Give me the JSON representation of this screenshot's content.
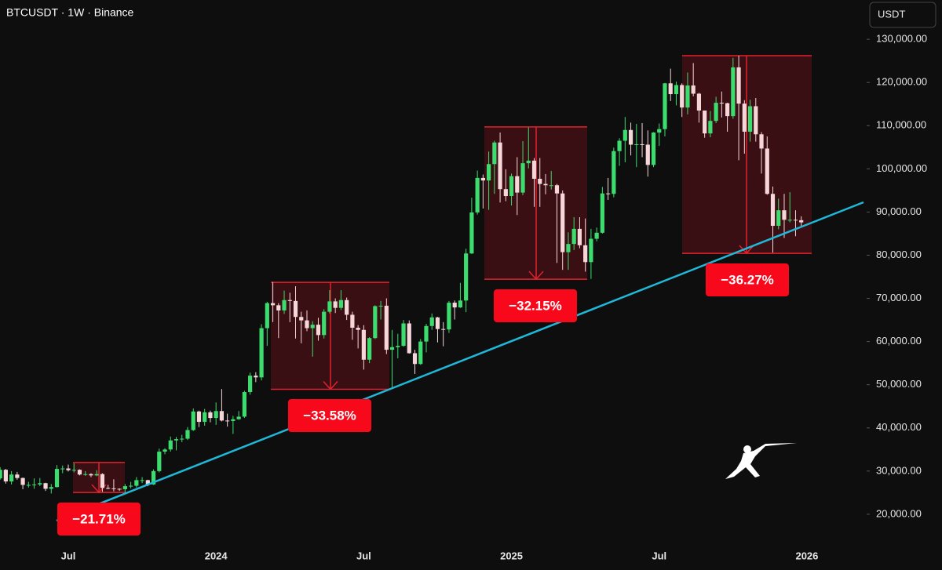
{
  "header": {
    "symbol": "BTCUSDT · 1W · Binance",
    "currency": "USDT"
  },
  "chart_data": {
    "type": "candlestick",
    "up_color": "#3ddc6f",
    "down_color": "#f6d6d8",
    "grid": false,
    "categories": [
      null,
      null,
      null,
      null,
      null,
      null,
      null,
      null,
      null,
      null,
      null,
      null,
      null,
      "Jul",
      null,
      null,
      null,
      null,
      null,
      null,
      null,
      null,
      null,
      null,
      null,
      null,
      null,
      null,
      null,
      null,
      null,
      null,
      null,
      null,
      null,
      null,
      null,
      null,
      null,
      "2024",
      null,
      null,
      null,
      null,
      null,
      null,
      null,
      null,
      null,
      null,
      null,
      null,
      null,
      null,
      null,
      null,
      null,
      null,
      null,
      null,
      null,
      null,
      null,
      null,
      null,
      "Jul",
      null,
      null,
      null,
      null,
      null,
      null,
      null,
      null,
      null,
      null,
      null,
      null,
      null,
      null,
      null,
      null,
      null,
      null,
      null,
      null,
      null,
      null,
      null,
      null,
      null,
      "2025",
      null,
      null,
      null,
      null,
      null,
      null,
      null,
      null,
      null,
      null,
      null,
      null,
      null,
      null,
      null,
      null,
      null,
      null,
      null,
      null,
      null,
      null,
      null,
      null,
      null,
      "Jul",
      null,
      null,
      null,
      null,
      null,
      null,
      null,
      null,
      null,
      null,
      null,
      null,
      null,
      null,
      null,
      null,
      null,
      null,
      null,
      null,
      null,
      null,
      null,
      null,
      null,
      "2026"
    ],
    "open": [
      28000,
      28300,
      30300,
      27600,
      29200,
      28400,
      26800,
      26800,
      26900,
      27200,
      25900,
      26300,
      30500,
      30600,
      30200,
      30300,
      29200,
      29300,
      29000,
      29300,
      26100,
      26000,
      25900,
      25800,
      26500,
      26600,
      27900,
      27900,
      26900,
      30000,
      34500,
      35000,
      37100,
      37400,
      37500,
      39500,
      43800,
      41400,
      43600,
      42300,
      43900,
      41700,
      41600,
      42000,
      42600,
      48300,
      52100,
      51700,
      63100,
      68900,
      68400,
      67200,
      69600,
      69400,
      65700,
      64900,
      63100,
      63900,
      61500,
      66900,
      69300,
      67800,
      69600,
      66200,
      63200,
      62700,
      55800,
      60800,
      68200,
      68300,
      58100,
      58700,
      59000,
      64200,
      57300,
      54800,
      60000,
      63600,
      65600,
      62900,
      62800,
      69000,
      67900,
      69500,
      80400,
      89900,
      97900,
      97300,
      101100,
      106100,
      95300,
      93700,
      98300,
      94500,
      101300,
      101900,
      97700,
      96500,
      96200,
      96200,
      94300,
      80700,
      82600,
      86100,
      82300,
      78400,
      83800,
      85200,
      94300,
      94200,
      104100,
      106500,
      109000,
      105600,
      105700,
      105600,
      100900,
      108400,
      109200,
      119800,
      117300,
      119400,
      114200,
      119300,
      117400,
      113500,
      108200,
      111100,
      115300,
      115200,
      112200,
      123500,
      115100,
      108600,
      114500,
      108000,
      104700,
      94200,
      86800,
      90400,
      88200,
      88200,
      88100,
      null
    ],
    "high": [
      29200,
      30900,
      30500,
      30000,
      29800,
      28500,
      27500,
      28300,
      28400,
      27300,
      27000,
      31400,
      31300,
      31500,
      31800,
      30400,
      30000,
      29500,
      30200,
      29500,
      26800,
      28100,
      26000,
      27000,
      27500,
      28600,
      28600,
      28000,
      30400,
      35200,
      35300,
      38000,
      37900,
      38400,
      40200,
      44500,
      44000,
      44400,
      44000,
      45900,
      49000,
      43300,
      42800,
      43900,
      48600,
      52800,
      52900,
      64000,
      69200,
      73800,
      68900,
      71800,
      71300,
      72800,
      66900,
      67200,
      64700,
      65500,
      67500,
      71900,
      70000,
      71900,
      70200,
      66900,
      63800,
      63800,
      61000,
      68400,
      69400,
      70000,
      62700,
      61800,
      65000,
      64900,
      58100,
      60600,
      64100,
      66500,
      65700,
      64500,
      69400,
      69500,
      73600,
      81500,
      93300,
      99600,
      98700,
      104000,
      106500,
      108400,
      99900,
      98900,
      102700,
      106400,
      109600,
      102500,
      102500,
      98800,
      99500,
      96500,
      95000,
      85300,
      88800,
      88800,
      88500,
      86100,
      86400,
      95800,
      97900,
      104900,
      107100,
      112000,
      110700,
      110400,
      110600,
      108900,
      108500,
      110500,
      119900,
      123200,
      120200,
      119800,
      122300,
      124500,
      117600,
      113500,
      113400,
      116700,
      117900,
      115300,
      125700,
      126200,
      115900,
      116000,
      116400,
      108500,
      107500,
      95900,
      93100,
      94200,
      94600,
      90400,
      89000,
      null
    ],
    "low": [
      27200,
      28000,
      27100,
      26900,
      28000,
      25800,
      26200,
      25900,
      26500,
      25400,
      24800,
      26200,
      29500,
      29900,
      29700,
      29000,
      28900,
      28600,
      28800,
      25200,
      25800,
      25300,
      25400,
      24900,
      26000,
      26200,
      27200,
      26500,
      26800,
      29700,
      33900,
      34500,
      34800,
      36700,
      37200,
      39300,
      40200,
      40500,
      41300,
      40700,
      41500,
      40300,
      38600,
      41900,
      42300,
      47700,
      50600,
      51000,
      59000,
      64500,
      60800,
      66400,
      64500,
      60700,
      59600,
      62400,
      56500,
      60200,
      60700,
      66500,
      66600,
      67300,
      65000,
      60400,
      58400,
      53500,
      55000,
      60600,
      65100,
      57100,
      49000,
      56100,
      58800,
      57200,
      52500,
      54600,
      57500,
      62700,
      59800,
      58900,
      62000,
      65100,
      67800,
      66800,
      80300,
      89400,
      90800,
      90500,
      94200,
      92200,
      92500,
      91500,
      89300,
      93900,
      100100,
      91200,
      91200,
      94100,
      95200,
      78200,
      76600,
      76600,
      81200,
      81600,
      76200,
      74500,
      83200,
      85000,
      92800,
      93400,
      100700,
      101500,
      103100,
      100400,
      102700,
      98200,
      100400,
      105300,
      107500,
      115700,
      114700,
      112000,
      112600,
      116800,
      110700,
      107200,
      107300,
      110600,
      111900,
      108600,
      111600,
      102000,
      103500,
      106300,
      106300,
      98900,
      94000,
      80600,
      86000,
      84000,
      87600,
      84400,
      86600,
      null
    ],
    "close": [
      28300,
      30300,
      27600,
      29200,
      28400,
      26800,
      26800,
      26900,
      27200,
      25900,
      26300,
      30500,
      30600,
      30200,
      30300,
      29200,
      29300,
      29000,
      29300,
      26100,
      26000,
      25900,
      25800,
      26500,
      26600,
      27900,
      27900,
      26900,
      30000,
      34500,
      35000,
      37100,
      37400,
      37500,
      39500,
      43800,
      41400,
      43600,
      42300,
      43900,
      41700,
      41600,
      42000,
      42600,
      48300,
      52100,
      51700,
      63100,
      68900,
      68400,
      67200,
      69600,
      69400,
      65700,
      64900,
      63100,
      63900,
      61500,
      66900,
      69300,
      67800,
      69600,
      66200,
      63200,
      62700,
      55800,
      60800,
      68200,
      68300,
      58100,
      58700,
      59000,
      64200,
      57300,
      54800,
      60000,
      63600,
      65600,
      62900,
      62800,
      69000,
      67900,
      69500,
      80400,
      89900,
      97900,
      97300,
      101100,
      106100,
      95300,
      93700,
      98300,
      94500,
      101300,
      101900,
      97700,
      96500,
      96200,
      96200,
      94300,
      80700,
      82600,
      86100,
      82300,
      78400,
      83800,
      85200,
      94300,
      94200,
      104100,
      106500,
      109000,
      105600,
      105700,
      105600,
      100900,
      108400,
      109200,
      119800,
      117300,
      119400,
      114200,
      119300,
      117400,
      113500,
      108200,
      111100,
      115300,
      115200,
      112200,
      123500,
      115100,
      108600,
      114500,
      108000,
      104700,
      94200,
      86800,
      90400,
      88200,
      88200,
      88100,
      87600,
      null
    ],
    "ylim": [
      12900,
      139100
    ],
    "yticks": [
      {
        "value": 20000,
        "label": "20,000.00"
      },
      {
        "value": 30000,
        "label": "30,000.00"
      },
      {
        "value": 40000,
        "label": "40,000.00"
      },
      {
        "value": 50000,
        "label": "50,000.00"
      },
      {
        "value": 60000,
        "label": "60,000.00"
      },
      {
        "value": 70000,
        "label": "70,000.00"
      },
      {
        "value": 80000,
        "label": "80,000.00"
      },
      {
        "value": 90000,
        "label": "90,000.00"
      },
      {
        "value": 100000,
        "label": "100,000.00"
      },
      {
        "value": 110000,
        "label": "110,000.00"
      },
      {
        "value": 120000,
        "label": "120,000.00"
      },
      {
        "value": 130000,
        "label": "130,000.00"
      }
    ],
    "annotations": [
      {
        "label": "−21.71%",
        "high": 32000,
        "low": 25053
      },
      {
        "label": "−33.58%",
        "high": 73700,
        "low": 48952
      },
      {
        "label": "−32.15%",
        "high": 109700,
        "low": 74431
      },
      {
        "label": "−36.27%",
        "high": 126200,
        "low": 80427
      }
    ]
  }
}
